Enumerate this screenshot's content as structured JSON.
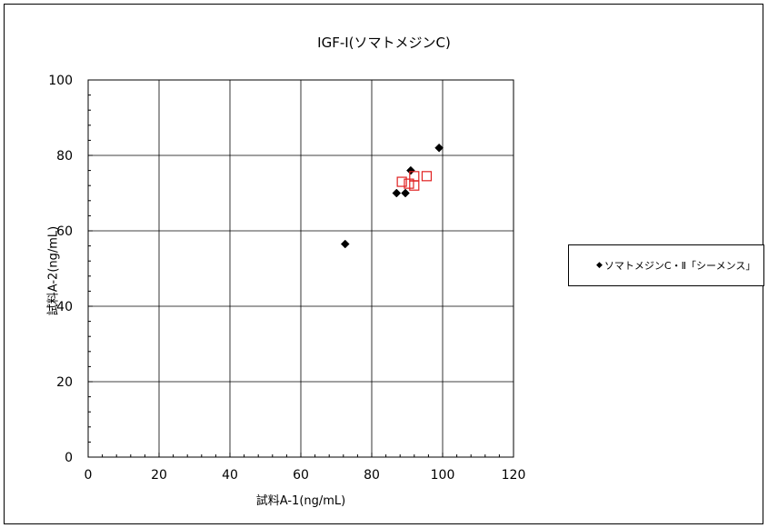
{
  "chart_data": {
    "type": "scatter",
    "title": "IGF-Ⅰ(ソマトメジンC)",
    "xlabel": "試料A-1(ng/mL)",
    "ylabel": "試料A-2(ng/mL)",
    "xlim": [
      0,
      120
    ],
    "ylim": [
      0,
      100
    ],
    "xticks": [
      "0",
      "20",
      "40",
      "60",
      "80",
      "100",
      "120"
    ],
    "yticks": [
      "0",
      "20",
      "40",
      "60",
      "80",
      "100"
    ],
    "grid": true,
    "legend_position": "right",
    "series": [
      {
        "name": "ソマトメジンC・Ⅱ「シーメンス」",
        "marker": "diamond",
        "color": "#000000",
        "points": [
          [
            72.5,
            56.5
          ],
          [
            87,
            70
          ],
          [
            89.5,
            70
          ],
          [
            91,
            76
          ],
          [
            99,
            82
          ]
        ]
      },
      {
        "marker": "open-square",
        "color": "#e02020",
        "points": [
          [
            88.5,
            73
          ],
          [
            90.5,
            72.5
          ],
          [
            92,
            74.5
          ],
          [
            92,
            72
          ],
          [
            95.5,
            74.5
          ]
        ]
      }
    ]
  }
}
